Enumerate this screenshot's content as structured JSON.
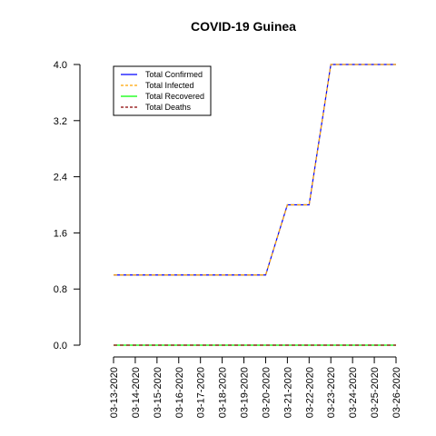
{
  "chart_data": {
    "type": "line",
    "title": "COVID-19 Guinea",
    "xlabel": "",
    "ylabel": "",
    "x": [
      "03-13-2020",
      "03-14-2020",
      "03-15-2020",
      "03-16-2020",
      "03-17-2020",
      "03-18-2020",
      "03-19-2020",
      "03-20-2020",
      "03-21-2020",
      "03-22-2020",
      "03-23-2020",
      "03-24-2020",
      "03-25-2020",
      "03-26-2020"
    ],
    "yticks": [
      "0.0",
      "0.8",
      "1.6",
      "2.4",
      "3.2",
      "4.0"
    ],
    "ylim": [
      0,
      4
    ],
    "grid": false,
    "legend_position": "top-left",
    "series": [
      {
        "name": "Total Confirmed",
        "color": "#0000ff",
        "dash": "solid",
        "values": [
          1,
          1,
          1,
          1,
          1,
          1,
          1,
          1,
          2,
          2,
          4,
          4,
          4,
          4
        ]
      },
      {
        "name": "Total Infected",
        "color": "#ffa500",
        "dash": "dashed",
        "values": [
          1,
          1,
          1,
          1,
          1,
          1,
          1,
          1,
          2,
          2,
          4,
          4,
          4,
          4
        ]
      },
      {
        "name": "Total Recovered",
        "color": "#00ff00",
        "dash": "solid",
        "values": [
          0,
          0,
          0,
          0,
          0,
          0,
          0,
          0,
          0,
          0,
          0,
          0,
          0,
          0
        ]
      },
      {
        "name": "Total Deaths",
        "color": "#8b0000",
        "dash": "dashed",
        "values": [
          0,
          0,
          0,
          0,
          0,
          0,
          0,
          0,
          0,
          0,
          0,
          0,
          0,
          0
        ]
      }
    ]
  }
}
